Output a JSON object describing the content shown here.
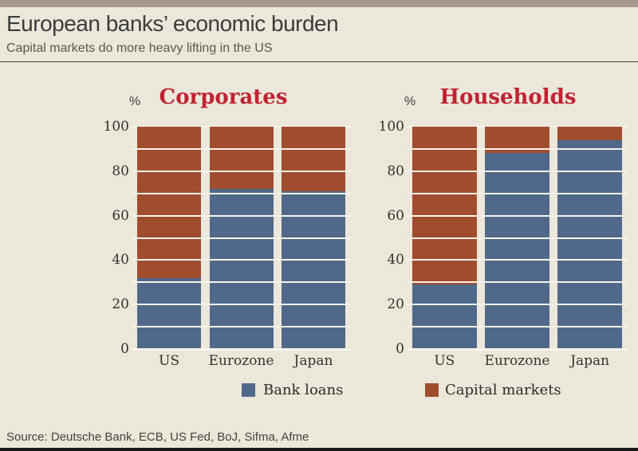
{
  "header": {
    "title": "European banks’ economic burden",
    "subtitle": "Capital markets do more heavy lifting in the US"
  },
  "legend": {
    "items": [
      {
        "label": "Bank loans",
        "color": "#50698a"
      },
      {
        "label": "Capital markets",
        "color": "#a04d2e"
      }
    ]
  },
  "source": "Source: Deutsche Bank, ECB, US Fed, BoJ, Sifma, Afme",
  "colors": {
    "background": "#ece7db",
    "top_strip": "#a79a8c",
    "bank_loans": "#50698a",
    "capital_markets": "#a04d2e",
    "panel_title": "#c02332",
    "gridline": "#f8f4ea",
    "text_dark": "#37322d",
    "bottom_border": "#1a1a1a"
  },
  "chart_data": [
    {
      "type": "bar",
      "stacked": true,
      "title": "Corporates",
      "unit_label": "%",
      "categories": [
        "US",
        "Eurozone",
        "Japan"
      ],
      "series": [
        {
          "name": "Bank loans",
          "color": "#50698a",
          "values": [
            32,
            72,
            71
          ]
        },
        {
          "name": "Capital markets",
          "color": "#a04d2e",
          "values": [
            68,
            28,
            29
          ]
        }
      ],
      "ylim": [
        0,
        100
      ],
      "ytick_step": 20,
      "grid_step": 10,
      "grid": true,
      "legend_position": "bottom"
    },
    {
      "type": "bar",
      "stacked": true,
      "title": "Households",
      "unit_label": "%",
      "categories": [
        "US",
        "Eurozone",
        "Japan"
      ],
      "series": [
        {
          "name": "Bank loans",
          "color": "#50698a",
          "values": [
            29,
            88,
            94
          ]
        },
        {
          "name": "Capital markets",
          "color": "#a04d2e",
          "values": [
            71,
            12,
            6
          ]
        }
      ],
      "ylim": [
        0,
        100
      ],
      "ytick_step": 20,
      "grid_step": 10,
      "grid": true,
      "legend_position": "bottom"
    }
  ]
}
